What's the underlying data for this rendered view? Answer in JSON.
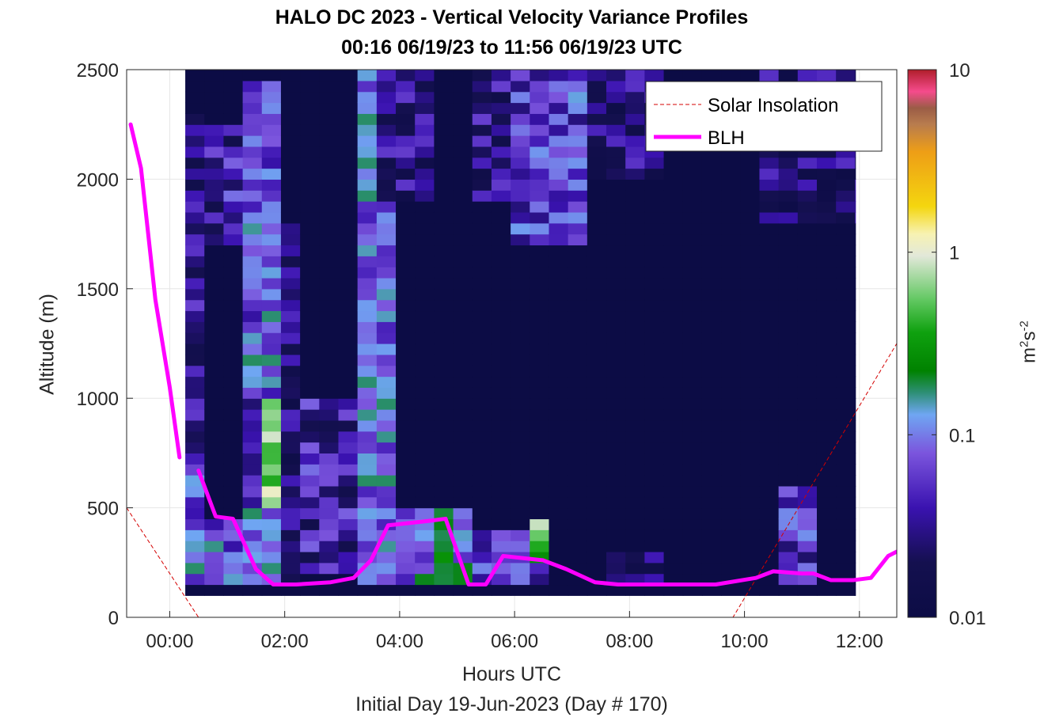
{
  "title": {
    "line1": "HALO DC 2023 - Vertical Velocity Variance Profiles",
    "line2": "00:16 06/19/23 to 11:56 06/19/23  UTC"
  },
  "xlabel": {
    "line1": "Hours UTC",
    "line2": "Initial Day 19-Jun-2023 (Day # 170)"
  },
  "ylabel": "Altitude (m)",
  "colorbar": {
    "unit_base": "m",
    "unit_exp1": "2",
    "unit_mid": "s",
    "unit_exp2": "-2",
    "scale": "log",
    "range": [
      0.01,
      10
    ],
    "ticks": [
      {
        "value": 0.01,
        "label": "0.01"
      },
      {
        "value": 0.1,
        "label": "0.1"
      },
      {
        "value": 1,
        "label": "1"
      },
      {
        "value": 10,
        "label": "10"
      }
    ]
  },
  "chart_data": {
    "type": "heatmap",
    "xlim_hours": [
      -0.75,
      12.65
    ],
    "ylim": [
      0,
      2500
    ],
    "grid": true,
    "legend_position": "top-right",
    "x_ticks": [
      {
        "value": 0,
        "label": "00:00"
      },
      {
        "value": 2,
        "label": "02:00"
      },
      {
        "value": 4,
        "label": "04:00"
      },
      {
        "value": 6,
        "label": "06:00"
      },
      {
        "value": 8,
        "label": "08:00"
      },
      {
        "value": 10,
        "label": "10:00"
      },
      {
        "value": 12,
        "label": "12:00"
      }
    ],
    "y_ticks": [
      {
        "value": 0,
        "label": "0"
      },
      {
        "value": 500,
        "label": "500"
      },
      {
        "value": 1000,
        "label": "1000"
      },
      {
        "value": 1500,
        "label": "1500"
      },
      {
        "value": 2000,
        "label": "2000"
      },
      {
        "value": 2500,
        "label": "2500"
      }
    ],
    "heatmap": {
      "time_start_hours": 0.27,
      "time_end_hours": 11.93,
      "time_step_hours": 0.333,
      "altitude_bottom_m": 100,
      "altitude_top_m": 2500,
      "altitude_step_m": 50,
      "background_value": 0.01,
      "bottom_row_value": 0.01,
      "features": [
        {
          "t_from": 0.27,
          "t_to": 0.6,
          "a_from": 150,
          "a_to": 2300,
          "value": 0.03,
          "vary": 0.35
        },
        {
          "t_from": 0.27,
          "t_to": 0.6,
          "a_from": 150,
          "a_to": 700,
          "value": 0.07,
          "vary": 0.4
        },
        {
          "t_from": 0.6,
          "t_to": 1.27,
          "a_from": 150,
          "a_to": 450,
          "value": 0.08,
          "vary": 0.35
        },
        {
          "t_from": 0.6,
          "t_to": 1.27,
          "a_from": 1700,
          "a_to": 2250,
          "value": 0.04,
          "vary": 0.4
        },
        {
          "t_from": 1.27,
          "t_to": 1.93,
          "a_from": 150,
          "a_to": 2450,
          "value": 0.08,
          "vary": 0.35
        },
        {
          "t_from": 1.27,
          "t_to": 1.6,
          "a_from": 500,
          "a_to": 1050,
          "value": 0.05,
          "vary": 0.3
        },
        {
          "t_from": 1.6,
          "t_to": 1.93,
          "a_from": 500,
          "a_to": 1000,
          "value": 0.7,
          "vary": 0.25
        },
        {
          "t_from": 1.93,
          "t_to": 2.27,
          "a_from": 150,
          "a_to": 1800,
          "value": 0.025,
          "vary": 0.3
        },
        {
          "t_from": 2.27,
          "t_to": 3.27,
          "a_from": 200,
          "a_to": 1000,
          "value": 0.04,
          "vary": 0.4
        },
        {
          "t_from": 3.27,
          "t_to": 3.93,
          "a_from": 150,
          "a_to": 2500,
          "value": 0.09,
          "vary": 0.3
        },
        {
          "t_from": 3.93,
          "t_to": 5.27,
          "a_from": 150,
          "a_to": 500,
          "value": 0.1,
          "vary": 0.35
        },
        {
          "t_from": 4.6,
          "t_to": 4.93,
          "a_from": 150,
          "a_to": 450,
          "value": 0.2,
          "vary": 0.25
        },
        {
          "t_from": 3.6,
          "t_to": 4.6,
          "a_from": 1900,
          "a_to": 2500,
          "value": 0.03,
          "vary": 0.35
        },
        {
          "t_from": 5.27,
          "t_to": 5.93,
          "a_from": 1900,
          "a_to": 2500,
          "value": 0.03,
          "vary": 0.35
        },
        {
          "t_from": 5.27,
          "t_to": 6.6,
          "a_from": 150,
          "a_to": 400,
          "value": 0.06,
          "vary": 0.35
        },
        {
          "t_from": 5.93,
          "t_to": 7.27,
          "a_from": 1700,
          "a_to": 2500,
          "value": 0.06,
          "vary": 0.35
        },
        {
          "t_from": 6.27,
          "t_to": 6.6,
          "a_from": 250,
          "a_to": 450,
          "value": 0.5,
          "vary": 0.3
        },
        {
          "t_from": 7.27,
          "t_to": 8.6,
          "a_from": 2000,
          "a_to": 2500,
          "value": 0.025,
          "vary": 0.35
        },
        {
          "t_from": 7.6,
          "t_to": 8.6,
          "a_from": 150,
          "a_to": 300,
          "value": 0.025,
          "vary": 0.25
        },
        {
          "t_from": 10.27,
          "t_to": 11.93,
          "a_from": 1800,
          "a_to": 2500,
          "value": 0.025,
          "vary": 0.35
        },
        {
          "t_from": 10.6,
          "t_to": 11.27,
          "a_from": 150,
          "a_to": 600,
          "value": 0.05,
          "vary": 0.4
        }
      ]
    },
    "series": [
      {
        "name": "Solar Insolation",
        "style": "dashed",
        "color": "#d40000",
        "x": [
          -0.75,
          0.5,
          9.8,
          12.65
        ],
        "y": [
          500,
          0,
          0,
          1250
        ]
      },
      {
        "name": "BLH",
        "style": "solid",
        "color": "#ff00ff",
        "segments": [
          {
            "x": [
              -0.68,
              -0.5,
              -0.25,
              0.0,
              0.17
            ],
            "y": [
              2250,
              2050,
              1450,
              1050,
              730
            ]
          },
          {
            "x": [
              0.5,
              0.8,
              1.1,
              1.5,
              1.8,
              2.2,
              2.8,
              3.2,
              3.5,
              3.8,
              4.5,
              4.8,
              5.2,
              5.5,
              5.8,
              6.5,
              6.9,
              7.4,
              7.8,
              8.3,
              8.8,
              9.5,
              10.2,
              10.5,
              11.0,
              11.2,
              11.5,
              11.9,
              12.2,
              12.5,
              12.65
            ],
            "y": [
              670,
              460,
              450,
              220,
              150,
              150,
              160,
              180,
              260,
              420,
              440,
              450,
              150,
              150,
              280,
              260,
              220,
              160,
              150,
              150,
              150,
              150,
              180,
              210,
              200,
              200,
              170,
              170,
              180,
              280,
              300
            ]
          }
        ]
      }
    ]
  }
}
